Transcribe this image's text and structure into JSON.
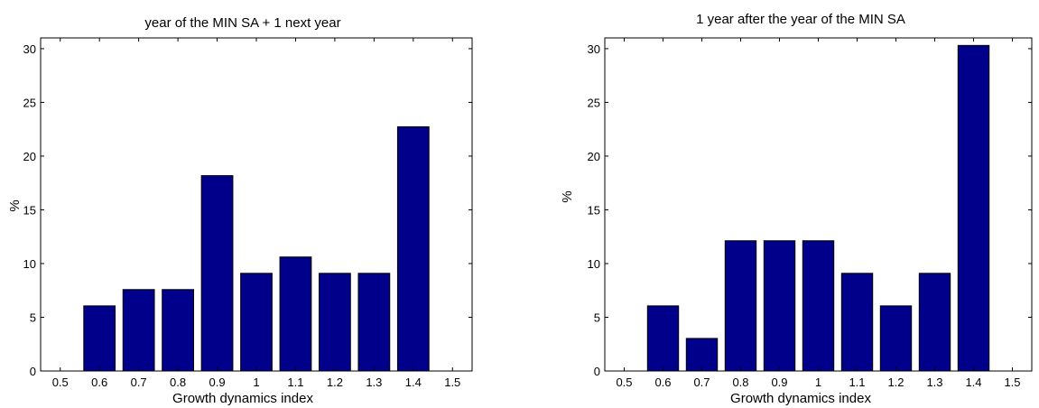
{
  "chart_data": [
    {
      "type": "bar",
      "title": "year of the MIN SA + 1 next year",
      "xlabel": "Growth dynamics index",
      "ylabel": "%",
      "x": [
        0.6,
        0.7,
        0.8,
        0.9,
        1.0,
        1.1,
        1.2,
        1.3,
        1.4
      ],
      "values": [
        6.06,
        7.58,
        7.58,
        18.18,
        9.09,
        10.61,
        9.09,
        9.09,
        22.73
      ],
      "xlim": [
        0.45,
        1.55
      ],
      "ylim": [
        0,
        31
      ],
      "xticks": [
        "0.5",
        "0.6",
        "0.7",
        "0.8",
        "0.9",
        "1",
        "1.1",
        "1.2",
        "1.3",
        "1.4",
        "1.5"
      ],
      "yticks": [
        "0",
        "5",
        "10",
        "15",
        "20",
        "25",
        "30"
      ],
      "bar_color": "#00008b",
      "grid": false
    },
    {
      "type": "bar",
      "title": "1 year after the year of the MIN SA",
      "xlabel": "Growth dynamics index",
      "ylabel": "%",
      "x": [
        0.6,
        0.7,
        0.8,
        0.9,
        1.0,
        1.1,
        1.2,
        1.3,
        1.4
      ],
      "values": [
        6.06,
        3.03,
        12.12,
        12.12,
        12.12,
        9.09,
        6.06,
        9.09,
        30.3
      ],
      "xlim": [
        0.45,
        1.55
      ],
      "ylim": [
        0,
        31
      ],
      "xticks": [
        "0.5",
        "0.6",
        "0.7",
        "0.8",
        "0.9",
        "1",
        "1.1",
        "1.2",
        "1.3",
        "1.4",
        "1.5"
      ],
      "yticks": [
        "0",
        "5",
        "10",
        "15",
        "20",
        "25",
        "30"
      ],
      "bar_color": "#00008b",
      "grid": false
    }
  ]
}
